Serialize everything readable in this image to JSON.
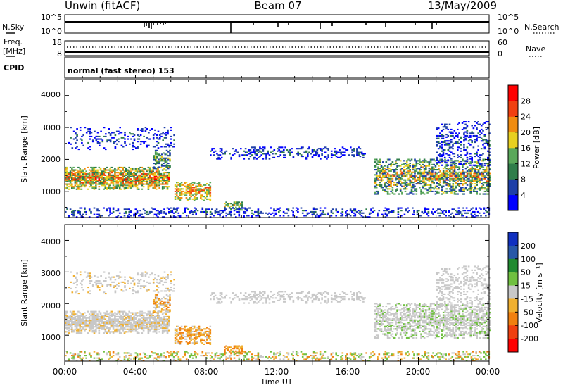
{
  "header": {
    "station": "Unwin (fitACF)",
    "beam": "Beam 07",
    "date": "13/May/2009"
  },
  "noise_panel": {
    "left_label": "N.Sky",
    "right_label": "N.Search",
    "left_ticks": [
      "10^5",
      "10^0"
    ],
    "right_ticks": [
      "10^5",
      "10^0"
    ]
  },
  "freq_panel": {
    "left_label_1": "Freq.",
    "left_label_2": "[MHz]",
    "right_label": "Nave",
    "left_ticks": [
      "18",
      "8"
    ],
    "right_ticks": [
      "60",
      "0"
    ]
  },
  "cpid_panel": {
    "label": "CPID",
    "text": "normal (fast stereo) 153"
  },
  "power_panel": {
    "ylabel": "Slant Range [km]",
    "yticks": [
      "4000",
      "3000",
      "2000",
      "1000"
    ],
    "colorbar_label": "Power [dB]",
    "colorbar_ticks": [
      "28",
      "24",
      "20",
      "16",
      "12",
      "8",
      "4"
    ],
    "colors": [
      "#0000ff",
      "#1e3fa8",
      "#2f7d4a",
      "#5aa85a",
      "#e8d020",
      "#f08c10",
      "#f04010",
      "#ff0000"
    ]
  },
  "velocity_panel": {
    "ylabel": "Slant Range [km]",
    "yticks": [
      "4000",
      "3000",
      "2000",
      "1000"
    ],
    "colorbar_label": "Velocity [m s⁻¹]",
    "colorbar_ticks": [
      "200",
      "100",
      "50",
      "15",
      "-15",
      "-50",
      "-100",
      "-200"
    ],
    "colors": [
      "#1030c0",
      "#2858a8",
      "#208a30",
      "#70c040",
      "#c8c8c8",
      "#f0b030",
      "#f08010",
      "#f04010",
      "#ff0000"
    ]
  },
  "xaxis": {
    "label": "Time UT",
    "ticks": [
      "00:00",
      "04:00",
      "08:00",
      "12:00",
      "16:00",
      "20:00",
      "00:00"
    ]
  },
  "chart_data": {
    "type": "heatmap",
    "title": "Unwin (fitACF) Beam 07 13/May/2009",
    "xlabel": "Time UT",
    "ylabel": "Slant Range [km]",
    "xlim_hours": [
      0,
      24
    ],
    "ylim_km": [
      180,
      4500
    ],
    "panels": [
      "Power [dB]",
      "Velocity [m s⁻¹]"
    ],
    "power_colorbar_range_db": [
      0,
      32
    ],
    "velocity_colorbar_ticks_ms": [
      200,
      100,
      50,
      15,
      -15,
      -50,
      -100,
      -200
    ],
    "scatter_regions": [
      {
        "t_start": 0.0,
        "t_end": 5.9,
        "range_km": [
          1000,
          1800
        ],
        "power_db": "10-30",
        "velocity": "near zero"
      },
      {
        "t_start": 0.2,
        "t_end": 6.2,
        "range_km": [
          2300,
          3000
        ],
        "power_db": "4-10",
        "velocity": "near zero"
      },
      {
        "t_start": 5.0,
        "t_end": 5.9,
        "range_km": [
          1700,
          2300
        ],
        "power_db": "8-16",
        "velocity": "-15 to -50"
      },
      {
        "t_start": 6.2,
        "t_end": 8.2,
        "range_km": [
          700,
          1300
        ],
        "power_db": "12-26",
        "velocity": "-15 to -100"
      },
      {
        "t_start": 9.0,
        "t_end": 10.0,
        "range_km": [
          400,
          700
        ],
        "power_db": "8-20",
        "velocity": "-50 to -100"
      },
      {
        "t_start": 8.2,
        "t_end": 17.0,
        "range_km": [
          2000,
          2400
        ],
        "power_db": "4-12",
        "velocity": "near zero"
      },
      {
        "t_start": 17.5,
        "t_end": 24.0,
        "range_km": [
          900,
          2000
        ],
        "power_db": "8-24",
        "velocity": "near zero"
      },
      {
        "t_start": 21.0,
        "t_end": 24.0,
        "range_km": [
          1800,
          3200
        ],
        "power_db": "4-12",
        "velocity": "near zero"
      },
      {
        "t_start": 0.0,
        "t_end": 24.0,
        "range_km": [
          180,
          500
        ],
        "power_db": "4-12",
        "velocity": "-15 to 50"
      }
    ]
  }
}
